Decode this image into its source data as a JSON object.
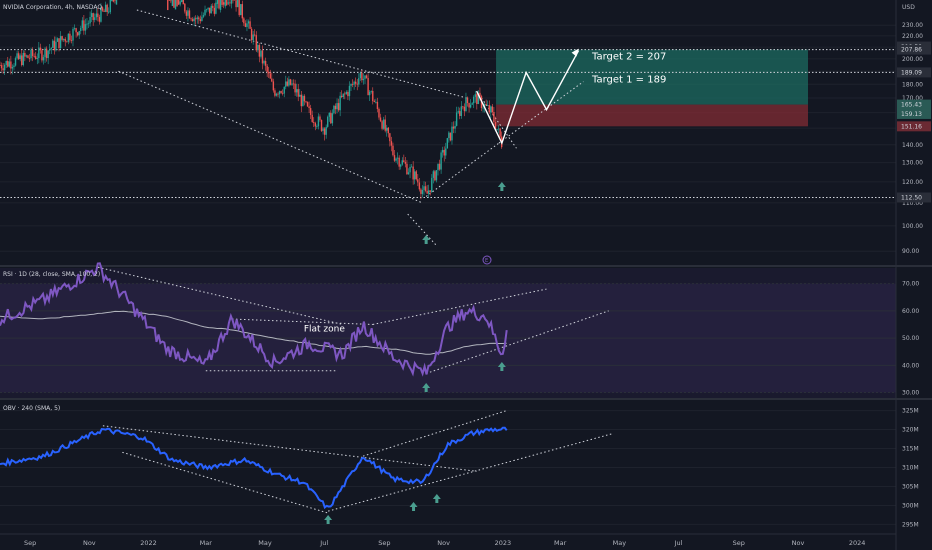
{
  "header": {
    "symbol": "NVIDIA Corporation, 4h, NASDAQ",
    "currency": "USD"
  },
  "colors": {
    "background": "#131722",
    "axis_text": "#b2b5be",
    "price_line": "#d1d4dc",
    "candle_up": "#26a69a",
    "candle_down": "#ef5350",
    "rsi_line": "#7e57c2",
    "rsi_sma": "#b2b5be",
    "obv_line": "#2962ff",
    "target_zone": "#1c6b60",
    "stop_zone": "#7a2b33",
    "arrow": "#4a9e8f",
    "annotation": "#ffffff"
  },
  "time_axis": {
    "labels": [
      "Sep",
      "Nov",
      "2022",
      "Mar",
      "May",
      "Jul",
      "Sep",
      "Nov",
      "2023",
      "Mar",
      "May",
      "Jul",
      "Sep",
      "Nov",
      "2024"
    ]
  },
  "chart_data": [
    {
      "type": "candlestick",
      "title": "NVIDIA Corporation, 4h, NASDAQ",
      "y_axis": {
        "scale": "log",
        "ticks": [
          "90.00",
          "100.00",
          "110.00",
          "120.00",
          "130.00",
          "140.00",
          "150.00",
          "160.00",
          "170.00",
          "180.00",
          "190.00",
          "200.00",
          "210.00",
          "220.00",
          "230.00"
        ],
        "range": [
          85,
          245
        ]
      },
      "price_tags": [
        {
          "label": "210.50",
          "value": 210.5,
          "style": "neutral"
        },
        {
          "label": "207.86",
          "value": 207.86,
          "style": "neutral"
        },
        {
          "label": "189.09",
          "value": 189.09,
          "style": "neutral"
        },
        {
          "label": "165.43",
          "value": 165.43,
          "style": "green"
        },
        {
          "label": "159.13",
          "value": 159.13,
          "style": "green"
        },
        {
          "label": "151.16",
          "value": 151.16,
          "style": "red"
        },
        {
          "label": "112.50",
          "value": 112.5,
          "style": "neutral"
        }
      ],
      "horizontal_levels": [
        207.86,
        189.09,
        112.5
      ],
      "annotations": [
        {
          "text": "Target 2 = 207"
        },
        {
          "text": "Target 1 = 189"
        }
      ],
      "price_path_dates": [
        "2021-08-01",
        "2021-09-15",
        "2021-11-20",
        "2021-12-15",
        "2022-01-15",
        "2022-02-20",
        "2022-03-28",
        "2022-05-10",
        "2022-05-28",
        "2022-06-15",
        "2022-07-01",
        "2022-07-20",
        "2022-08-08",
        "2022-08-20",
        "2022-09-10",
        "2022-10-01",
        "2022-10-14",
        "2022-11-01",
        "2022-11-20",
        "2022-12-05",
        "2022-12-20",
        "2022-12-31"
      ],
      "price_path_values": [
        195,
        205,
        245,
        300,
        270,
        235,
        262,
        175,
        180,
        160,
        150,
        170,
        188,
        170,
        135,
        124,
        113,
        135,
        165,
        170,
        160,
        141
      ]
    },
    {
      "type": "line",
      "title": "RSI · 1D (28, close, SMA, 100, 2)",
      "y_axis": {
        "ticks": [
          "30.00",
          "40.00",
          "50.00",
          "60.00",
          "70.00"
        ],
        "range": [
          28,
          75
        ]
      },
      "annotations": [
        {
          "text": "Flat zone"
        }
      ],
      "x": [
        "2021-08-01",
        "2021-09-15",
        "2021-11-10",
        "2021-12-05",
        "2022-01-20",
        "2022-03-01",
        "2022-03-28",
        "2022-05-10",
        "2022-06-15",
        "2022-07-20",
        "2022-08-10",
        "2022-09-10",
        "2022-10-14",
        "2022-11-05",
        "2022-11-25",
        "2022-12-15",
        "2022-12-31",
        "2023-01-05"
      ],
      "series": [
        {
          "values": [
            57,
            64,
            76,
            66,
            46,
            40,
            57,
            41,
            48,
            44,
            55,
            43,
            37,
            54,
            60,
            58,
            44,
            53
          ]
        }
      ],
      "sma": [
        58,
        57,
        59,
        60,
        58,
        54,
        53,
        50,
        48,
        46,
        47,
        46,
        44,
        45,
        47,
        48,
        48,
        48
      ]
    },
    {
      "type": "line",
      "title": "OBV · 240 (SMA, 5)",
      "y_axis": {
        "ticks": [
          "295M",
          "300M",
          "305M",
          "310M",
          "315M",
          "320M",
          "325M"
        ],
        "range": [
          293,
          327
        ]
      },
      "x": [
        "2021-08-01",
        "2021-09-15",
        "2021-11-15",
        "2021-12-25",
        "2022-01-25",
        "2022-03-01",
        "2022-04-10",
        "2022-05-15",
        "2022-06-10",
        "2022-07-05",
        "2022-08-10",
        "2022-09-10",
        "2022-10-10",
        "2022-11-05",
        "2022-11-30",
        "2022-12-20",
        "2023-01-05"
      ],
      "series": [
        {
          "values": [
            311,
            313,
            320,
            318,
            312,
            310,
            312,
            308,
            306,
            299,
            313,
            307,
            306,
            316,
            319,
            320,
            320
          ]
        }
      ]
    }
  ]
}
